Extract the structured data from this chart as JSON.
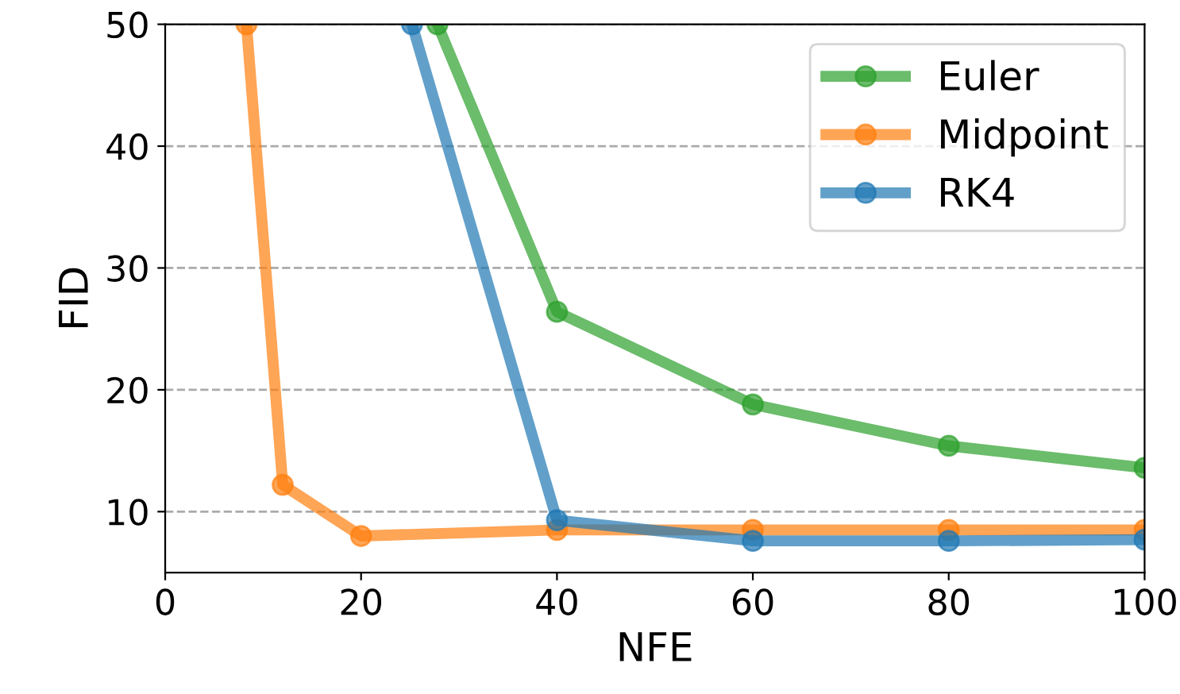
{
  "chart_data": {
    "type": "line",
    "xlabel": "NFE",
    "ylabel": "FID",
    "xlim": [
      0,
      100
    ],
    "xticks": [
      0,
      20,
      40,
      60,
      80,
      100
    ],
    "ylim": [
      5,
      50
    ],
    "yticks": [
      10,
      20,
      30,
      40,
      50
    ],
    "grid": "y",
    "legend": "top right",
    "marker": "circle",
    "line_style": "solid",
    "series": [
      {
        "name": "Euler",
        "color": "#2ca02c",
        "x": [
          27.8,
          40,
          60,
          80,
          100
        ],
        "values": [
          50,
          26.4,
          18.8,
          15.4,
          13.6
        ]
      },
      {
        "name": "Midpoint",
        "color": "#ff7f0e",
        "x": [
          8.3,
          12,
          20,
          40,
          60,
          80,
          100
        ],
        "values": [
          50,
          12.2,
          8.0,
          8.5,
          8.5,
          8.5,
          8.5
        ]
      },
      {
        "name": "RK4",
        "color": "#1f77b4",
        "x": [
          25.2,
          40,
          60,
          80,
          100
        ],
        "values": [
          50,
          9.3,
          7.6,
          7.6,
          7.7
        ]
      }
    ]
  }
}
